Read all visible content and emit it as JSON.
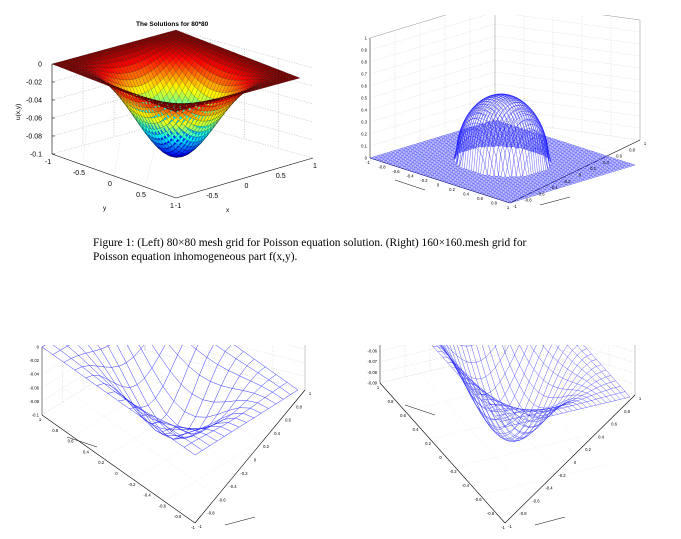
{
  "caption": {
    "line1": "Figure 1: (Left) 80×80 mesh grid for Poisson equation solution. (Right) 160×160.mesh grid for",
    "line2": "Poisson equation inhomogeneous part f(x,y)."
  },
  "figures": {
    "top_left": {
      "title": "The Solutions for 80*80",
      "zlabel": "u(x,y)",
      "xlabel": "x",
      "ylabel": "y",
      "z_ticks": [
        "0",
        "-0.02",
        "-0.04",
        "-0.06",
        "-0.08",
        "-0.1"
      ],
      "y_ticks": [
        "-1",
        "-0.5",
        "0",
        "0.5",
        "1"
      ],
      "x_ticks": [
        "-1",
        "-0.5",
        "0",
        "0.5",
        "1"
      ]
    },
    "top_right": {
      "z_ticks": [
        "1",
        "0.9",
        "0.8",
        "0.7",
        "0.6",
        "0.5",
        "0.4",
        "0.3",
        "0.2",
        "0.1",
        "0"
      ],
      "left_ticks": [
        "-1",
        "-0.8",
        "-0.6",
        "-0.4",
        "-0.2",
        "0",
        "0.2",
        "0.4",
        "0.6",
        "0.8",
        "1"
      ],
      "right_ticks": [
        "-1",
        "-0.8",
        "-0.6",
        "-0.4",
        "-0.2",
        "0",
        "0.2",
        "0.4",
        "0.6",
        "0.8",
        "1"
      ]
    },
    "bottom_left": {
      "z_ticks": [
        "0",
        "-0.02",
        "-0.04",
        "-0.06",
        "-0.08",
        "-0.1"
      ],
      "left_ticks": [
        "1",
        "0.8",
        "0.6",
        "0.4",
        "0.2",
        "0",
        "-0.2",
        "-0.4",
        "-0.6",
        "-0.8",
        "-1"
      ],
      "right_ticks": [
        "-1",
        "-0.8",
        "-0.6",
        "-0.4",
        "-0.2",
        "0",
        "0.2",
        "0.4",
        "0.6",
        "0.8",
        "1"
      ]
    },
    "bottom_right": {
      "z_ticks": [
        "0",
        "-0.01",
        "-0.02",
        "-0.03",
        "-0.04",
        "-0.05",
        "-0.06",
        "-0.07",
        "-0.08",
        "-0.09"
      ],
      "left_ticks": [
        "1",
        "0.8",
        "0.6",
        "0.4",
        "0.2",
        "0",
        "-0.2",
        "-0.4",
        "-0.6",
        "-0.8",
        "-1"
      ],
      "right_ticks": [
        "-1",
        "-0.8",
        "-0.6",
        "-0.4",
        "-0.2",
        "0",
        "0.2",
        "0.4",
        "0.6",
        "0.8",
        "1"
      ]
    }
  },
  "colors": {
    "mesh_blue": "#1f1fff",
    "axis": "#000000",
    "grid": "#9a9a9a"
  }
}
